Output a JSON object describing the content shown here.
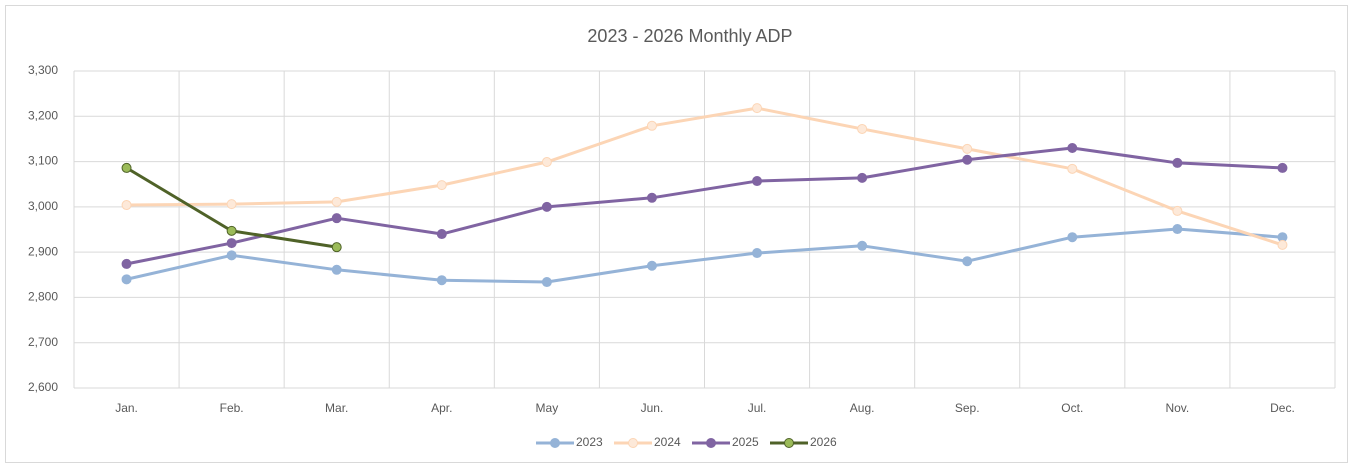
{
  "chart_data": {
    "type": "line",
    "title": "2023 - 2026 Monthly ADP",
    "categories": [
      "Jan.",
      "Feb.",
      "Mar.",
      "Apr.",
      "May",
      "Jun.",
      "Jul.",
      "Aug.",
      "Sep.",
      "Oct.",
      "Nov.",
      "Dec."
    ],
    "series": [
      {
        "name": "2023",
        "color": "#95b3d7",
        "marker_color": "#95b3d7",
        "values": [
          2840,
          2893,
          2861,
          2838,
          2834,
          2870,
          2898,
          2914,
          2880,
          2933,
          2951,
          2933
        ]
      },
      {
        "name": "2024",
        "color": "#fcd5b5",
        "marker_color": "#fde9d9",
        "values": [
          3004,
          3006,
          3011,
          3048,
          3099,
          3179,
          3218,
          3172,
          3128,
          3084,
          2991,
          2916
        ]
      },
      {
        "name": "2025",
        "color": "#8064a2",
        "marker_color": "#8064a2",
        "values": [
          2874,
          2920,
          2975,
          2940,
          3000,
          3020,
          3057,
          3064,
          3104,
          3130,
          3097,
          3086
        ]
      },
      {
        "name": "2026",
        "color": "#4f6228",
        "marker_color": "#9bbb59",
        "values": [
          3086,
          2947,
          2911,
          null,
          null,
          null,
          null,
          null,
          null,
          null,
          null,
          null
        ]
      }
    ],
    "ylim": [
      2600,
      3300
    ],
    "yticks": [
      {
        "value": 2600,
        "label": "2,600"
      },
      {
        "value": 2700,
        "label": "2,700"
      },
      {
        "value": 2800,
        "label": "2,800"
      },
      {
        "value": 2900,
        "label": "2,900"
      },
      {
        "value": 3000,
        "label": "3,000"
      },
      {
        "value": 3100,
        "label": "3,100"
      },
      {
        "value": 3200,
        "label": "3,200"
      },
      {
        "value": 3300,
        "label": "3,300"
      }
    ],
    "grid": true,
    "legend": "bottom"
  }
}
